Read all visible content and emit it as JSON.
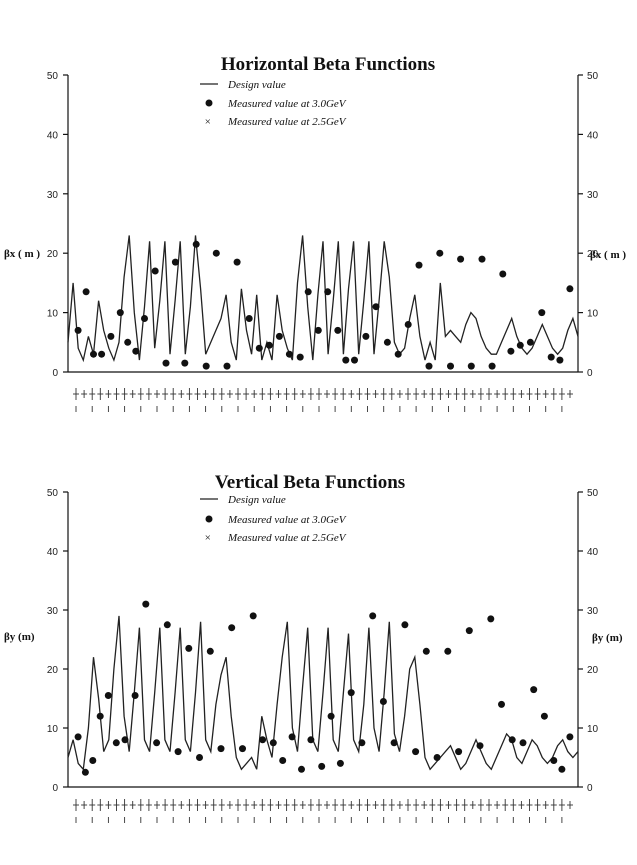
{
  "chart_data": [
    {
      "type": "line",
      "title": "Horizontal Beta Functions",
      "ylabel": "βx ( m )",
      "ylim": [
        0,
        50
      ],
      "yticks": [
        "0",
        "10",
        "20",
        "30",
        "40",
        "50"
      ],
      "legend": [
        {
          "symbol": "line",
          "label": "Design value"
        },
        {
          "symbol": "dot",
          "label": "Measured value at 3.0GeV"
        },
        {
          "symbol": "cross",
          "label": "Measured value at 2.5GeV"
        }
      ],
      "series": [
        {
          "name": "Design value",
          "x": [
            0,
            1,
            2,
            3,
            4,
            5,
            6,
            7,
            8,
            9,
            10,
            11,
            12,
            13,
            14,
            15,
            16,
            17,
            18,
            19,
            20,
            21,
            22,
            23,
            24,
            25,
            26,
            27,
            28,
            29,
            30,
            31,
            32,
            33,
            34,
            35,
            36,
            37,
            38,
            39,
            40,
            41,
            42,
            43,
            44,
            45,
            46,
            47,
            48,
            49,
            50,
            51,
            52,
            53,
            54,
            55,
            56,
            57,
            58,
            59,
            60,
            61,
            62,
            63,
            64,
            65,
            66,
            67,
            68,
            69,
            70,
            71,
            72,
            73,
            74,
            75,
            76,
            77,
            78,
            79,
            80,
            81,
            82,
            83,
            84,
            85,
            86,
            87,
            88,
            89,
            90,
            91,
            92,
            93,
            94,
            95,
            96,
            97,
            98,
            99,
            100
          ],
          "values": [
            5,
            15,
            4,
            2,
            6,
            3,
            12,
            7,
            4,
            2,
            5,
            16,
            23,
            10,
            2,
            11,
            22,
            4,
            12,
            22,
            3,
            12,
            22,
            3,
            11,
            23,
            14,
            3,
            5,
            7,
            9,
            13,
            5,
            2,
            14,
            7,
            3,
            13,
            2,
            5,
            2,
            13,
            7,
            4,
            2,
            15,
            23,
            11,
            2,
            13,
            22,
            3,
            12,
            22,
            3,
            14,
            22,
            3,
            12,
            22,
            3,
            12,
            22,
            16,
            5,
            3,
            4,
            9,
            13,
            6,
            2,
            5,
            2,
            15,
            6,
            7,
            6,
            5,
            8,
            10,
            9,
            6,
            4,
            3,
            3,
            5,
            7,
            9,
            6,
            4,
            3,
            4,
            6,
            8,
            6,
            4,
            3,
            4,
            7,
            9,
            6
          ]
        },
        {
          "name": "Measured value at 3.0GeV",
          "x": [
            1.5,
            2.7,
            3.8,
            5.0,
            6.4,
            7.8,
            8.9,
            10.1,
            11.4,
            13.0,
            14.6,
            16.0,
            17.4,
            19.1,
            20.6,
            22.1,
            23.7,
            25.2,
            27.0,
            28.5,
            30.0,
            31.5,
            33.0,
            34.6,
            35.8,
            37.3,
            38.7,
            40.2,
            41.4,
            42.7,
            44.4,
            45.9,
            47.6,
            49.2,
            50.7,
            52.3,
            53.8,
            55.4,
            57.0,
            58.5,
            60.1,
            61.7,
            63.2,
            64.8,
            66.0,
            67.4,
            68.9,
            70.6,
            72.0,
            73.3,
            74.8
          ],
          "values": [
            7,
            13.5,
            3,
            3,
            6,
            10,
            5,
            3.5,
            9,
            17,
            1.5,
            18.5,
            1.5,
            21.5,
            1,
            20,
            1,
            18.5,
            9,
            4,
            4.5,
            6,
            3,
            2.5,
            13.5,
            7,
            13.5,
            7,
            2,
            2,
            6,
            11,
            5,
            3,
            8,
            18,
            1,
            20,
            1,
            19,
            1,
            19,
            1,
            16.5,
            3.5,
            4.5,
            5,
            10,
            2.5,
            2,
            14
          ]
        }
      ]
    },
    {
      "type": "line",
      "title": "Vertical Beta Functions",
      "ylabel": "βy (m)",
      "ylim": [
        0,
        50
      ],
      "yticks": [
        "0",
        "10",
        "20",
        "30",
        "40",
        "50"
      ],
      "legend": [
        {
          "symbol": "line",
          "label": "Design value"
        },
        {
          "symbol": "dot",
          "label": "Measured value at 3.0GeV"
        },
        {
          "symbol": "cross",
          "label": "Measured value at 2.5GeV"
        }
      ],
      "series": [
        {
          "name": "Design value",
          "x": [
            0,
            1,
            2,
            3,
            4,
            5,
            6,
            7,
            8,
            9,
            10,
            11,
            12,
            13,
            14,
            15,
            16,
            17,
            18,
            19,
            20,
            21,
            22,
            23,
            24,
            25,
            26,
            27,
            28,
            29,
            30,
            31,
            32,
            33,
            34,
            35,
            36,
            37,
            38,
            39,
            40,
            41,
            42,
            43,
            44,
            45,
            46,
            47,
            48,
            49,
            50,
            51,
            52,
            53,
            54,
            55,
            56,
            57,
            58,
            59,
            60,
            61,
            62,
            63,
            64,
            65,
            66,
            67,
            68,
            69,
            70,
            71,
            72,
            73,
            74,
            75,
            76,
            77,
            78,
            79,
            80,
            81,
            82,
            83,
            84,
            85,
            86,
            87,
            88,
            89,
            90,
            91,
            92,
            93,
            94,
            95,
            96,
            97,
            98,
            99,
            100
          ],
          "values": [
            5,
            8,
            4,
            3,
            10,
            22,
            15,
            6,
            8,
            20,
            29,
            12,
            6,
            16,
            27,
            8,
            6,
            16,
            27,
            8,
            6,
            16,
            27,
            8,
            6,
            16,
            28,
            8,
            6,
            14,
            19,
            22,
            12,
            5,
            3,
            4,
            5,
            3,
            12,
            8,
            5,
            14,
            22,
            28,
            10,
            6,
            17,
            27,
            8,
            6,
            16,
            27,
            8,
            6,
            16,
            26,
            8,
            6,
            14,
            27,
            10,
            6,
            16,
            28,
            9,
            6,
            12,
            20,
            22,
            14,
            5,
            3,
            4,
            5,
            6,
            7,
            5,
            3,
            4,
            6,
            8,
            6,
            4,
            3,
            5,
            7,
            9,
            8,
            5,
            4,
            6,
            8,
            7,
            5,
            4,
            5,
            7,
            8,
            6,
            5,
            6
          ]
        },
        {
          "name": "Measured value at 3.0GeV",
          "x": [
            1.5,
            2.6,
            3.7,
            4.8,
            6.0,
            7.2,
            8.5,
            10.0,
            11.6,
            13.2,
            14.8,
            16.4,
            18.0,
            19.6,
            21.2,
            22.8,
            24.4,
            26.0,
            27.6,
            29.0,
            30.6,
            32.0,
            33.4,
            34.8,
            36.2,
            37.8,
            39.2,
            40.6,
            42.2,
            43.8,
            45.4,
            47.0,
            48.6,
            50.2,
            51.8,
            53.4,
            55.0,
            56.6,
            58.2,
            59.8,
            61.4,
            63.0,
            64.6,
            66.2,
            67.8,
            69.4,
            71.0,
            72.4,
            73.6,
            74.8
          ],
          "values": [
            8.5,
            2.5,
            4.5,
            12,
            15.5,
            7.5,
            8,
            15.5,
            31,
            7.5,
            27.5,
            6,
            23.5,
            5,
            23,
            6.5,
            27,
            6.5,
            29,
            8,
            7.5,
            4.5,
            8.5,
            3,
            8,
            3.5,
            12,
            4,
            16,
            7.5,
            29,
            14.5,
            7.5,
            27.5,
            6,
            23,
            5,
            23,
            6,
            26.5,
            7,
            28.5,
            14,
            8,
            7.5,
            16.5,
            12,
            4.5,
            3,
            8.5
          ]
        }
      ]
    }
  ]
}
